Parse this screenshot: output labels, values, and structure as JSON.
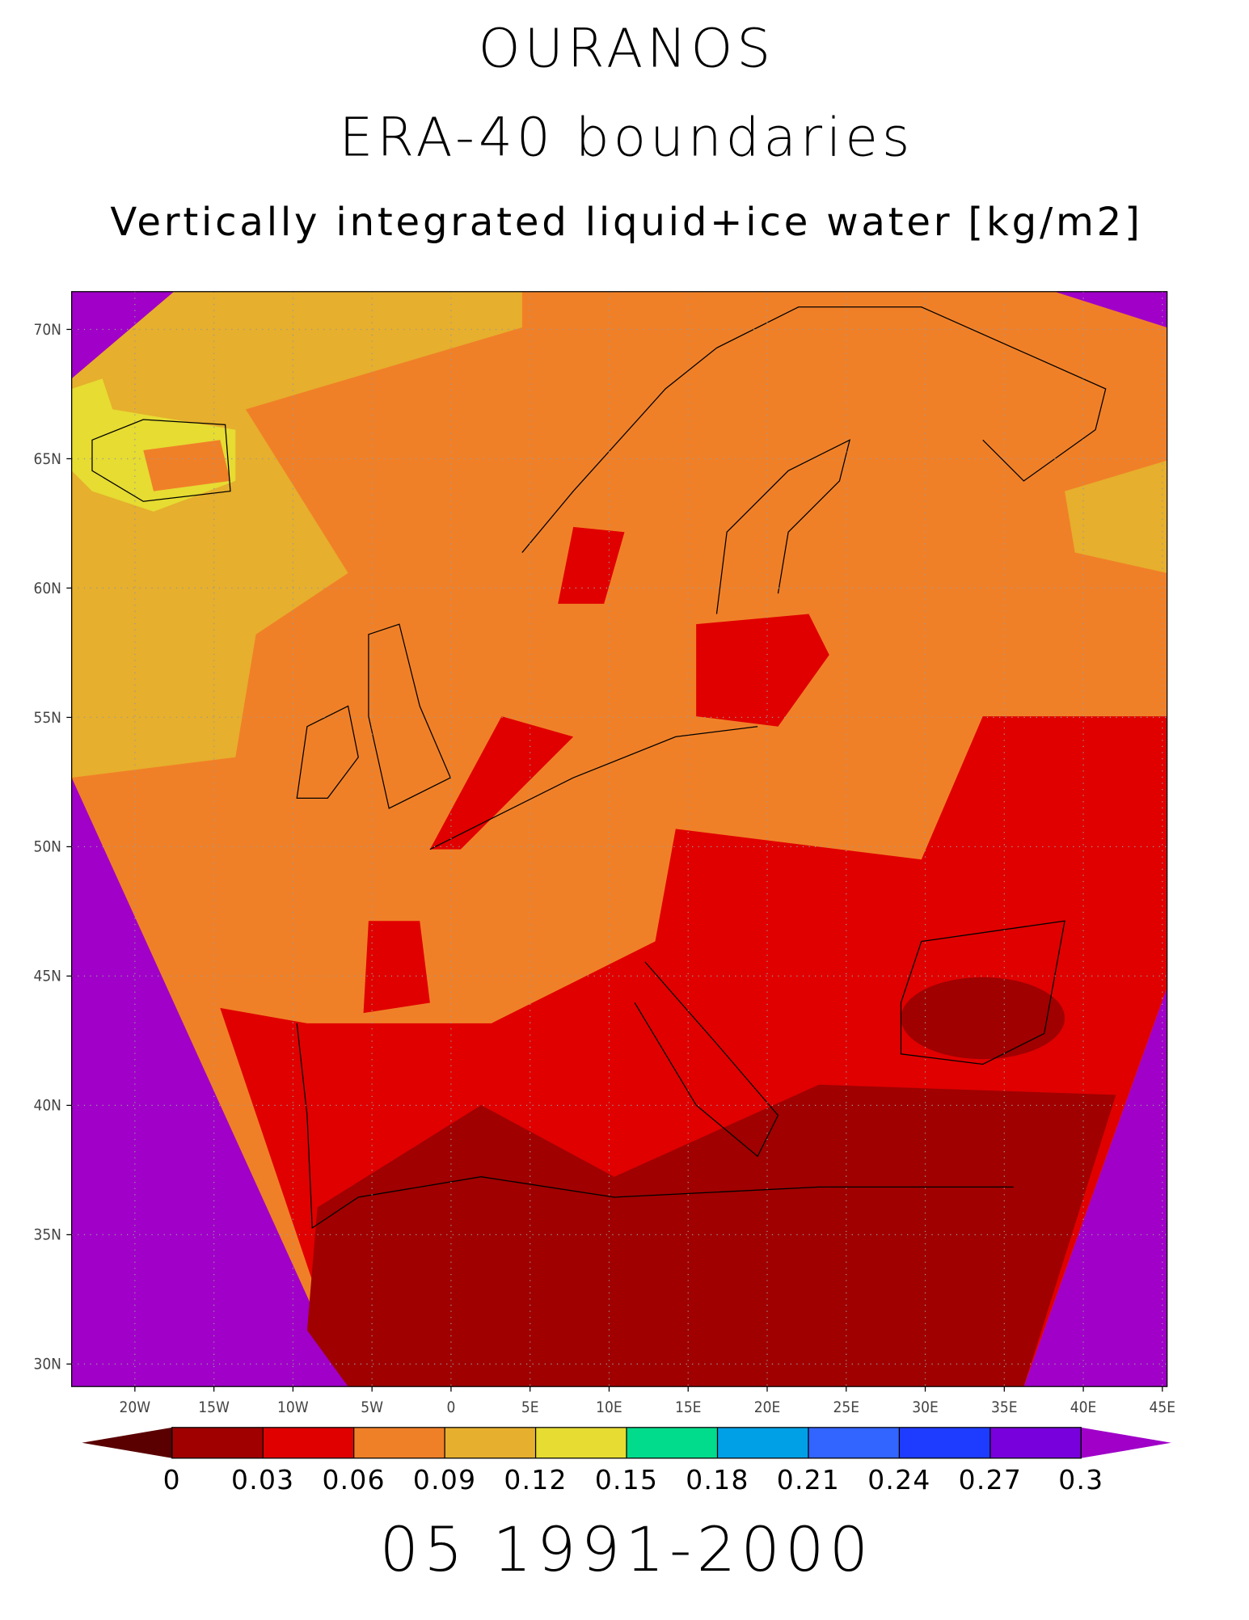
{
  "map": {
    "title": "OURANOS",
    "subtitle": "ERA-40 boundaries",
    "variable": "Vertically integrated liquid+ice water [kg/m2]",
    "period": "05 1991-2000",
    "xlim": [
      -24,
      45.3
    ],
    "ylim": [
      29.13,
      71.46
    ],
    "xticks": [
      {
        "value": -20,
        "label": "20W"
      },
      {
        "value": -15,
        "label": "15W"
      },
      {
        "value": -10,
        "label": "10W"
      },
      {
        "value": -5,
        "label": "5W"
      },
      0,
      {
        "value": 5,
        "label": "5E"
      },
      {
        "value": 10,
        "label": "10E"
      },
      {
        "value": 15,
        "label": "15E"
      },
      {
        "value": 20,
        "label": "20E"
      },
      {
        "value": 25,
        "label": "25E"
      },
      {
        "value": 30,
        "label": "30E"
      },
      {
        "value": 35,
        "label": "35E"
      },
      {
        "value": 40,
        "label": "40E"
      },
      {
        "value": 45,
        "label": "45E"
      }
    ],
    "yticks": [
      {
        "value": 30,
        "label": "30N"
      },
      {
        "value": 35,
        "label": "35N"
      },
      {
        "value": 40,
        "label": "40N"
      },
      {
        "value": 45,
        "label": "45N"
      },
      {
        "value": 50,
        "label": "50N"
      },
      {
        "value": 55,
        "label": "55N"
      },
      {
        "value": 60,
        "label": "60N"
      },
      {
        "value": 65,
        "label": "65N"
      },
      {
        "value": 70,
        "label": "70N"
      }
    ],
    "grid": true,
    "colorbar": {
      "levels": [
        0,
        0.03,
        0.06,
        0.09,
        0.12,
        0.15,
        0.18,
        0.21,
        0.24,
        0.27,
        0.3
      ],
      "colors": [
        "#5a0000",
        "#a00000",
        "#e00000",
        "#f08028",
        "#e6af2d",
        "#e6dc32",
        "#00dc8c",
        "#00a0e6",
        "#3264ff",
        "#1e3cff",
        "#7800dc",
        "#a000c8"
      ]
    }
  }
}
